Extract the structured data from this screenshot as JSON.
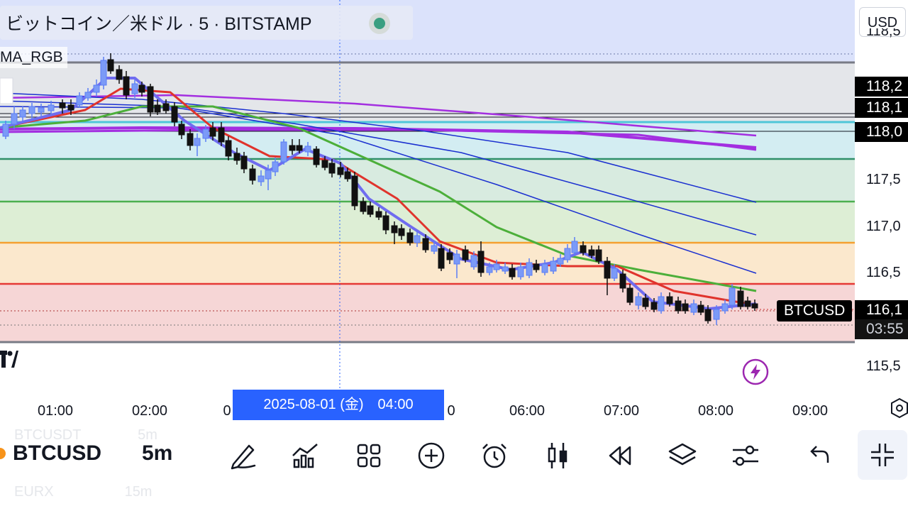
{
  "header": {
    "title": "ビットコイン／米ドル · 5 · BITSTAMP",
    "indicator": "MA_RGB",
    "currency": "USD"
  },
  "price_axis": {
    "ticks": [
      "115,5",
      "116,5",
      "117,0",
      "117,5"
    ],
    "tags": [
      "118,2",
      "118,1",
      "118,0",
      "116,1",
      "03:55"
    ],
    "top_tick": "118,5"
  },
  "symbol_label": "BTCUSD",
  "time_axis": {
    "ticks": [
      "01:00",
      "02:00",
      "0",
      "0",
      "06:00",
      "07:00",
      "08:00",
      "09:00"
    ],
    "cursor": "2025-08-01 (金)　04:00"
  },
  "bottom_bar": {
    "symbol": "BTCUSD",
    "interval": "5m",
    "ghost_top": "BTCUSDT　　　　5m",
    "ghost_bottom": "EURX　　　　　15m"
  },
  "toolbar": [
    "pen-icon",
    "indicators-icon",
    "layout-grid-icon",
    "add-icon",
    "alarm-icon",
    "candles-icon",
    "replay-icon",
    "layers-icon",
    "settings-sliders-icon",
    "undo-icon",
    "collapse-icon"
  ],
  "colors": {
    "accent": "#2962ff",
    "ma_blue": "#6f6cf0",
    "ma_red": "#e0332c",
    "ma_green": "#4caf3a",
    "ma_navy": "#1a2fd0",
    "ma_purple": "#a32fe0"
  }
}
